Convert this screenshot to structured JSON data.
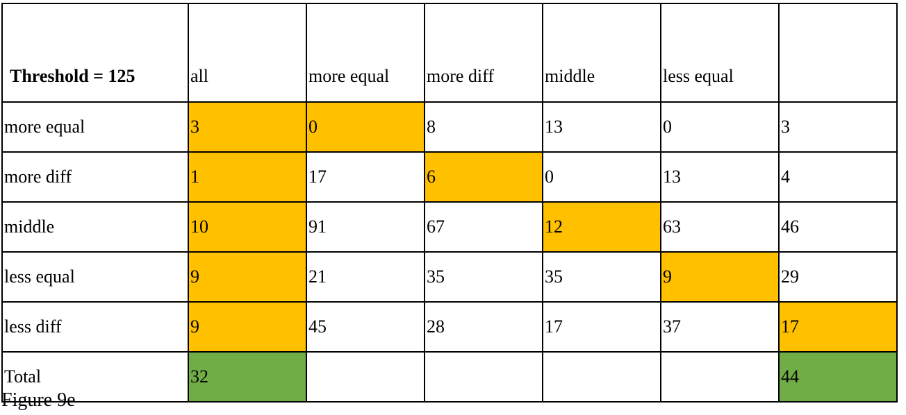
{
  "table": {
    "header": [
      "Threshold = 125",
      "all",
      "more equal",
      "more diff",
      "middle",
      "less equal",
      ""
    ],
    "rows": [
      {
        "label": "more equal",
        "cells": [
          "3",
          "0",
          "8",
          "13",
          "0",
          "3"
        ]
      },
      {
        "label": "more diff",
        "cells": [
          "1",
          "17",
          "6",
          "0",
          "13",
          "4"
        ]
      },
      {
        "label": "middle",
        "cells": [
          "10",
          "91",
          "67",
          "12",
          "63",
          "46"
        ]
      },
      {
        "label": "less equal",
        "cells": [
          "9",
          "21",
          "35",
          "35",
          "9",
          "29"
        ]
      },
      {
        "label": "less diff",
        "cells": [
          "9",
          "45",
          "28",
          "17",
          "37",
          "17"
        ]
      },
      {
        "label": "Total",
        "cells": [
          "32",
          "",
          "",
          "",
          "",
          "44"
        ]
      }
    ]
  },
  "highlights": {
    "orange": [
      [
        0,
        0
      ],
      [
        0,
        1
      ],
      [
        1,
        0
      ],
      [
        1,
        2
      ],
      [
        2,
        0
      ],
      [
        2,
        3
      ],
      [
        3,
        0
      ],
      [
        3,
        4
      ],
      [
        4,
        0
      ],
      [
        4,
        5
      ]
    ],
    "green": [
      [
        5,
        0
      ],
      [
        5,
        5
      ]
    ]
  },
  "colors": {
    "orange": "#ffc000",
    "green": "#70ad47",
    "border": "#000000"
  },
  "caption": "Figure 9e"
}
